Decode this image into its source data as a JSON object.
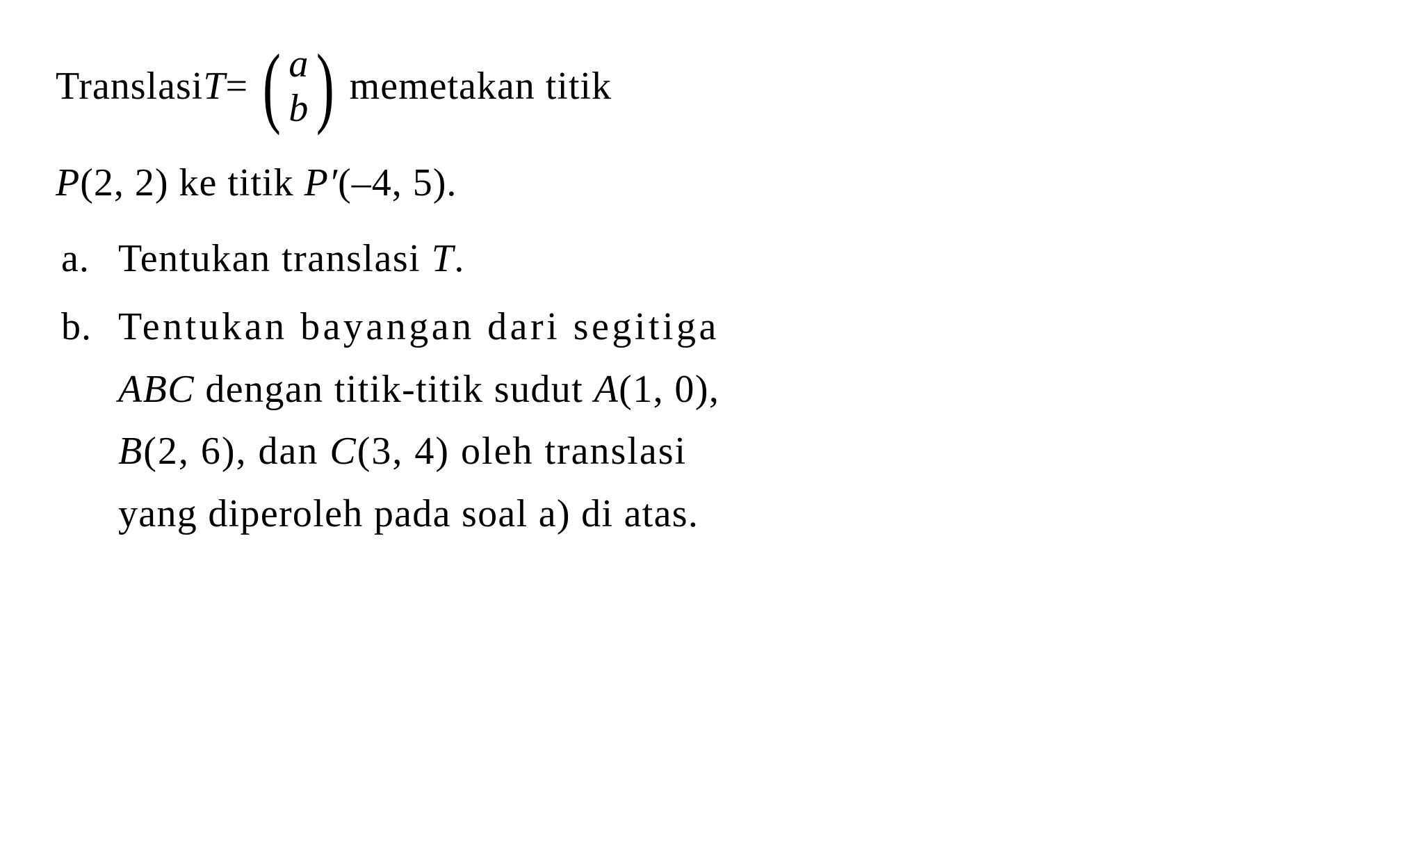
{
  "problem": {
    "intro": {
      "part1": "Translasi ",
      "T": "T",
      "equals": " = ",
      "vector_top": "a",
      "vector_bottom": "b",
      "part2": "  memetakan  titik"
    },
    "given": {
      "P": "P",
      "P_coords": "(2, 2) ke titik ",
      "Pprime": "P′",
      "Pprime_coords": "(–4, 5)."
    },
    "parts": {
      "a": {
        "marker": "a.",
        "text_pre": "Tentukan translasi ",
        "T": "T",
        "text_post": "."
      },
      "b": {
        "marker": "b.",
        "line1_pre": "Tentukan  bayangan  dari  segitiga",
        "line2_ABC": "ABC",
        "line2_mid": " dengan titik-titik sudut ",
        "line2_A": "A",
        "line2_Acoord": "(1, 0),",
        "line3_B": "B",
        "line3_Bcoord": "(2, 6), dan ",
        "line3_C": "C",
        "line3_Ccoord": "(3, 4) oleh translasi",
        "line4": "yang diperoleh pada soal a) di atas."
      }
    }
  },
  "style": {
    "font_family": "Times New Roman",
    "font_size_pt": 42,
    "text_color": "#000000",
    "background_color": "#ffffff"
  }
}
